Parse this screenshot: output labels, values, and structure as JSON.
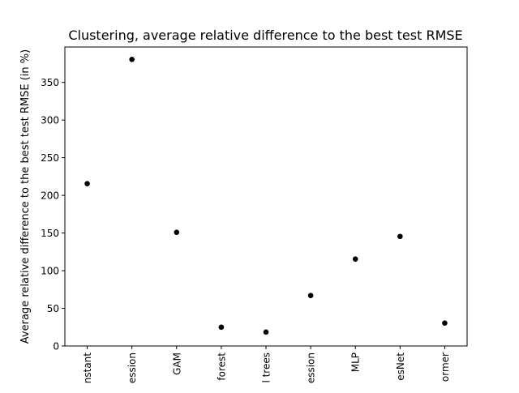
{
  "chart_data": {
    "type": "scatter",
    "title": "Clustering, average relative difference to the best test RMSE",
    "xlabel": "",
    "ylabel": "Average relative difference to the best test RMSE (in %)",
    "categories": [
      "nstant",
      "ession",
      "GAM",
      "forest",
      "l trees",
      "ession",
      "MLP",
      "esNet",
      "ormer"
    ],
    "values": [
      215.5,
      380.5,
      151,
      25,
      18.5,
      67,
      115.5,
      145.5,
      30.5
    ],
    "ylim": [
      0,
      397
    ],
    "yticks": [
      0,
      50,
      100,
      150,
      200,
      250,
      300,
      350
    ],
    "grid": false,
    "marker_color": "#000000"
  }
}
